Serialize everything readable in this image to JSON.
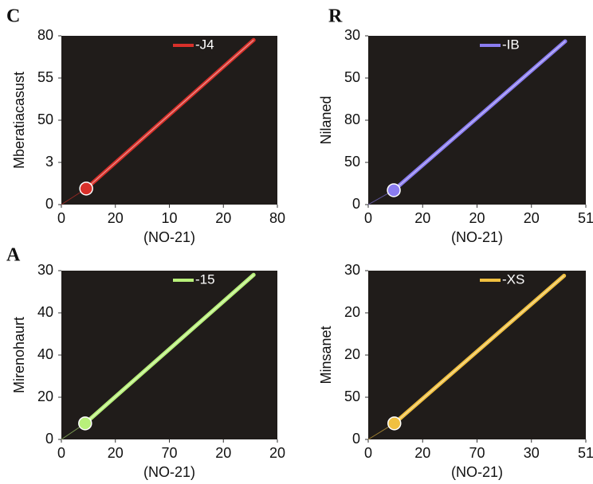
{
  "chart_data": [
    {
      "type": "line",
      "title": "C",
      "x_label": "(NO-21)",
      "y_label": "Mberatiacasust",
      "xlim": [
        0,
        4
      ],
      "ylim": [
        0,
        4
      ],
      "xticks": [
        {
          "value": 0,
          "label": "0"
        },
        {
          "value": 1,
          "label": "20"
        },
        {
          "value": 2,
          "label": "10"
        },
        {
          "value": 3,
          "label": "20"
        },
        {
          "value": 4,
          "label": "80"
        }
      ],
      "yticks": [
        {
          "value": 0,
          "label": "0"
        },
        {
          "value": 1,
          "label": "3"
        },
        {
          "value": 2,
          "label": "50"
        },
        {
          "value": 3,
          "label": "55"
        },
        {
          "value": 4,
          "label": "80"
        }
      ],
      "series": [
        {
          "name": "-J4",
          "color": "#d8302a",
          "x": [
            0.46,
            3.56
          ],
          "values": [
            0.38,
            3.9
          ]
        }
      ]
    },
    {
      "type": "line",
      "title": "R",
      "x_label": "(NO-21)",
      "y_label": "Nilaned",
      "xlim": [
        0,
        4
      ],
      "ylim": [
        0,
        4
      ],
      "xticks": [
        {
          "value": 0,
          "label": "0"
        },
        {
          "value": 1,
          "label": "20"
        },
        {
          "value": 2,
          "label": "20"
        },
        {
          "value": 3,
          "label": "20"
        },
        {
          "value": 4,
          "label": "51"
        }
      ],
      "yticks": [
        {
          "value": 0,
          "label": "0"
        },
        {
          "value": 1,
          "label": "50"
        },
        {
          "value": 2,
          "label": "80"
        },
        {
          "value": 3,
          "label": "50"
        },
        {
          "value": 4,
          "label": "30"
        }
      ],
      "series": [
        {
          "name": "-IB",
          "color": "#8a7cf0",
          "x": [
            0.47,
            3.62
          ],
          "values": [
            0.34,
            3.87
          ]
        }
      ]
    },
    {
      "type": "line",
      "title": "A",
      "x_label": "(NO-21)",
      "y_label": "Mirenohaurt",
      "xlim": [
        0,
        4
      ],
      "ylim": [
        0,
        4
      ],
      "xticks": [
        {
          "value": 0,
          "label": "0"
        },
        {
          "value": 1,
          "label": "20"
        },
        {
          "value": 2,
          "label": "70"
        },
        {
          "value": 3,
          "label": "20"
        },
        {
          "value": 4,
          "label": "20"
        }
      ],
      "yticks": [
        {
          "value": 0,
          "label": "0"
        },
        {
          "value": 1,
          "label": "20"
        },
        {
          "value": 2,
          "label": "40"
        },
        {
          "value": 3,
          "label": "40"
        },
        {
          "value": 4,
          "label": "30"
        }
      ],
      "series": [
        {
          "name": "-15",
          "color": "#b8f07a",
          "x": [
            0.44,
            3.56
          ],
          "values": [
            0.38,
            3.9
          ]
        }
      ]
    },
    {
      "type": "line",
      "x_label": "(NO-21)",
      "y_label": "Minsanet",
      "xlim": [
        0,
        4
      ],
      "ylim": [
        0,
        4
      ],
      "xticks": [
        {
          "value": 0,
          "label": "0"
        },
        {
          "value": 1,
          "label": "20"
        },
        {
          "value": 2,
          "label": "70"
        },
        {
          "value": 3,
          "label": "30"
        },
        {
          "value": 4,
          "label": "51"
        }
      ],
      "yticks": [
        {
          "value": 0,
          "label": "0"
        },
        {
          "value": 1,
          "label": "50"
        },
        {
          "value": 2,
          "label": "20"
        },
        {
          "value": 3,
          "label": "20"
        },
        {
          "value": 4,
          "label": "30"
        }
      ],
      "series": [
        {
          "name": "-XS",
          "color": "#f0c040",
          "x": [
            0.48,
            3.6
          ],
          "values": [
            0.38,
            3.88
          ]
        }
      ]
    }
  ]
}
